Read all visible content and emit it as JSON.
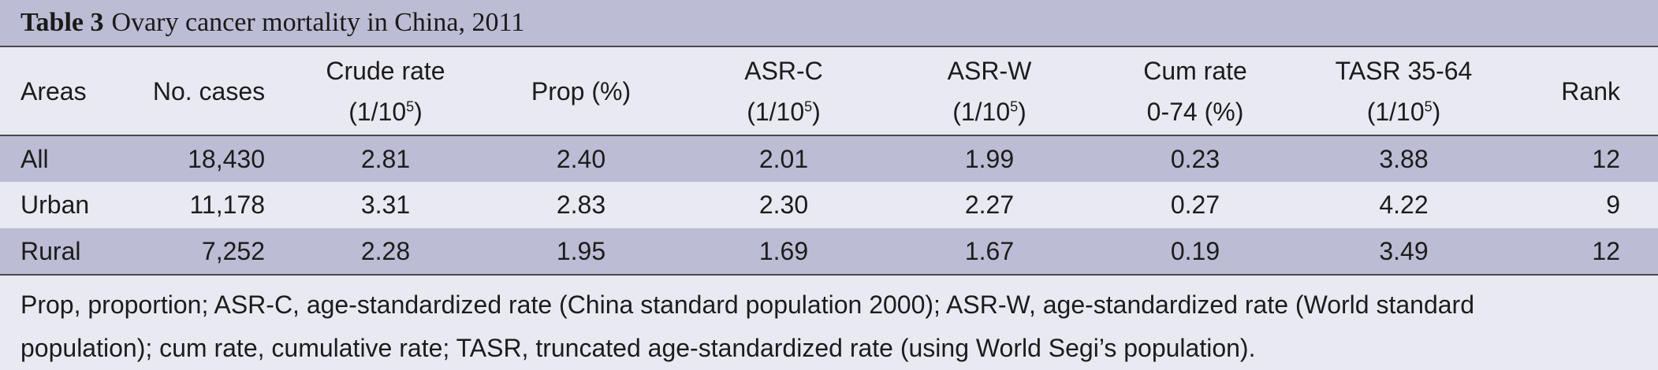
{
  "caption": {
    "label": "Table 3",
    "title": "Ovary cancer mortality in China, 2011"
  },
  "headers": {
    "areas": "Areas",
    "cases": "No. cases",
    "crude_line1": "Crude rate",
    "crude_unit": "(1/10",
    "crude_exp": "5",
    "crude_close": ")",
    "prop": "Prop (%)",
    "asrc_line1": "ASR-C",
    "asrc_unit": "(1/10",
    "asrc_exp": "5",
    "asrc_close": ")",
    "asrw_line1": "ASR-W",
    "asrw_unit": "(1/10",
    "asrw_exp": "5",
    "asrw_close": ")",
    "cum_line1": "Cum rate",
    "cum_line2": "0-74 (%)",
    "tasr_line1": "TASR 35-64",
    "tasr_unit": "(1/10",
    "tasr_exp": "5",
    "tasr_close": ")",
    "rank": "Rank"
  },
  "rows": [
    {
      "area": "All",
      "cases": "18,430",
      "crude": "2.81",
      "prop": "2.40",
      "asrc": "2.01",
      "asrw": "1.99",
      "cum": "0.23",
      "tasr": "3.88",
      "rank": "12"
    },
    {
      "area": "Urban",
      "cases": "11,178",
      "crude": "3.31",
      "prop": "2.83",
      "asrc": "2.30",
      "asrw": "2.27",
      "cum": "0.27",
      "tasr": "4.22",
      "rank": "9"
    },
    {
      "area": "Rural",
      "cases": "7,252",
      "crude": "2.28",
      "prop": "1.95",
      "asrc": "1.69",
      "asrw": "1.67",
      "cum": "0.19",
      "tasr": "3.49",
      "rank": "12"
    }
  ],
  "footnote": {
    "line1": "Prop, proportion; ASR-C, age-standardized rate (China standard population 2000); ASR-W, age-standardized rate (World standard",
    "line2": "population); cum rate, cumulative rate; TASR, truncated age-standardized rate (using World Segi’s population)."
  },
  "colors": {
    "shade": "#bcbcd4",
    "light": "#e9e9f2",
    "rule": "#4a4a4a"
  }
}
